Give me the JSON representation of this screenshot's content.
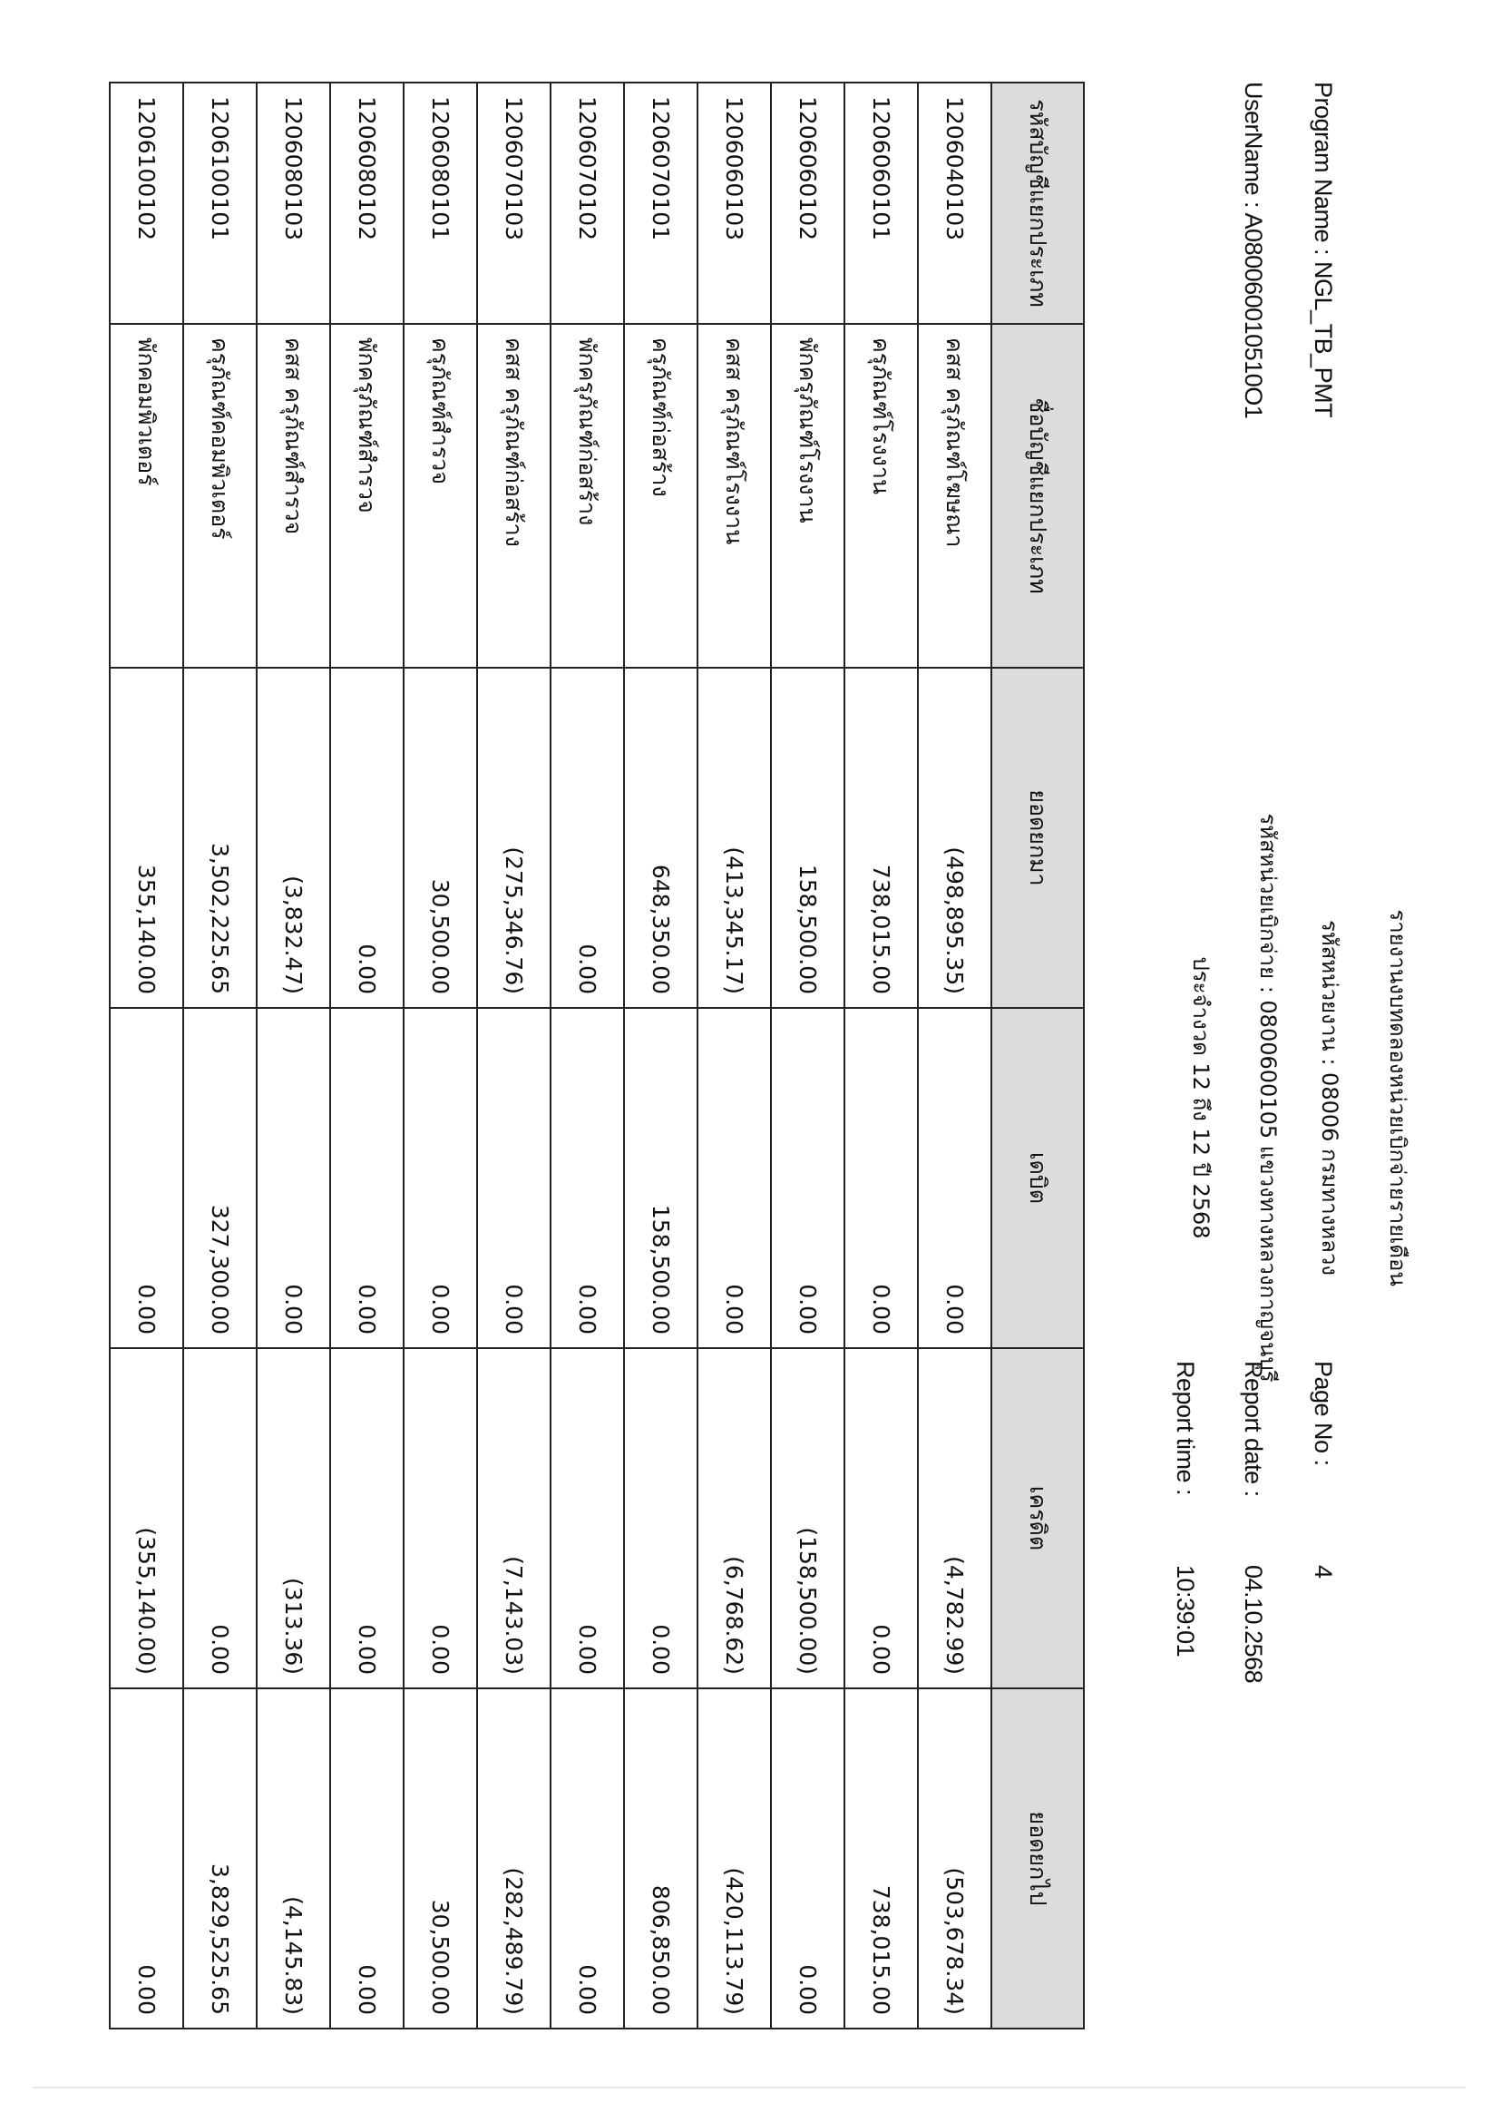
{
  "header": {
    "title": "รายงานงบทดลองหน่วยเบิกจ่ายรายเดือน",
    "department": "รหัสหน่วยงาน : 08006 กรมทางหลวง",
    "disbursement_unit": "รหัสหน่วยเบิกจ่าย : 0800600105 แขวงทางหลวงกาญจนบุรี",
    "period": "ประจำงวด 12 ถึง 12 ปี 2568",
    "program_name": "Program Name : NGL_TB_PMT",
    "username": "UserName : A080060010510O1",
    "page_no_label": "Page No :",
    "page_no": "4",
    "report_date_label": "Report date :",
    "report_date": "04.10.2568",
    "report_time_label": "Report time :",
    "report_time": "10:39:01"
  },
  "table": {
    "columns": [
      "รหัสบัญชีแยกประเภท",
      "ชื่อบัญชีแยกประเภท",
      "ยอดยกมา",
      "เดบิต",
      "เครดิต",
      "ยอดยกไป"
    ],
    "rows": [
      [
        "1206040103",
        "คสส ครุภัณฑ์โฆษณา",
        "(498,895.35)",
        "0.00",
        "(4,782.99)",
        "(503,678.34)"
      ],
      [
        "1206060101",
        "ครุภัณฑ์โรงงาน",
        "738,015.00",
        "0.00",
        "0.00",
        "738,015.00"
      ],
      [
        "1206060102",
        "พักครุภัณฑ์โรงงาน",
        "158,500.00",
        "0.00",
        "(158,500.00)",
        "0.00"
      ],
      [
        "1206060103",
        "คสส ครุภัณฑ์โรงงาน",
        "(413,345.17)",
        "0.00",
        "(6,768.62)",
        "(420,113.79)"
      ],
      [
        "1206070101",
        "ครุภัณฑ์ก่อสร้าง",
        "648,350.00",
        "158,500.00",
        "0.00",
        "806,850.00"
      ],
      [
        "1206070102",
        "พักครุภัณฑ์ก่อสร้าง",
        "0.00",
        "0.00",
        "0.00",
        "0.00"
      ],
      [
        "1206070103",
        "คสส ครุภัณฑ์ก่อสร้าง",
        "(275,346.76)",
        "0.00",
        "(7,143.03)",
        "(282,489.79)"
      ],
      [
        "1206080101",
        "ครุภัณฑ์สำรวจ",
        "30,500.00",
        "0.00",
        "0.00",
        "30,500.00"
      ],
      [
        "1206080102",
        "พักครุภัณฑ์สำรวจ",
        "0.00",
        "0.00",
        "0.00",
        "0.00"
      ],
      [
        "1206080103",
        "คสส ครุภัณฑ์สำรวจ",
        "(3,832.47)",
        "0.00",
        "(313.36)",
        "(4,145.83)"
      ],
      [
        "1206100101",
        "ครุภัณฑ์คอมพิวเตอร์",
        "3,502,225.65",
        "327,300.00",
        "0.00",
        "3,829,525.65"
      ],
      [
        "1206100102",
        "พักคอมพิวเตอร์",
        "355,140.00",
        "0.00",
        "(355,140.00)",
        "0.00"
      ]
    ]
  }
}
